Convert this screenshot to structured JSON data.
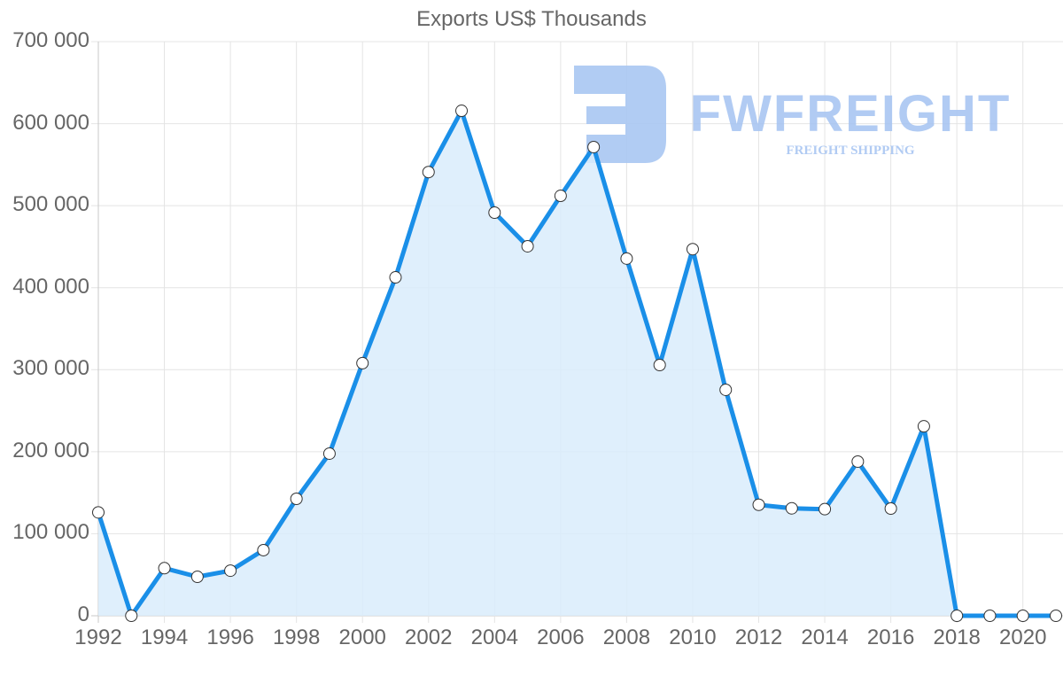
{
  "chart_data": {
    "type": "line",
    "title": "Exports US$ Thousands",
    "xlabel": "",
    "ylabel": "",
    "x": [
      1992,
      1993,
      1994,
      1995,
      1996,
      1997,
      1998,
      1999,
      2000,
      2001,
      2002,
      2003,
      2004,
      2005,
      2006,
      2007,
      2008,
      2009,
      2010,
      2011,
      2012,
      2013,
      2014,
      2015,
      2016,
      2017,
      2018,
      2019,
      2020,
      2021
    ],
    "series": [
      {
        "name": "Exports US$ Thousands",
        "values": [
          126000,
          0,
          58000,
          47500,
          55000,
          80000,
          142600,
          197700,
          308000,
          412600,
          541000,
          615700,
          491500,
          450500,
          512000,
          571500,
          435500,
          305700,
          447000,
          275500,
          135300,
          131000,
          130000,
          188000,
          130700,
          231000,
          0,
          0,
          0,
          0
        ],
        "color": "#1a8fe8",
        "fill": "#d9ecfc",
        "area": true
      }
    ],
    "ylim": [
      0,
      700000
    ],
    "yticks": [
      "0",
      "100 000",
      "200 000",
      "300 000",
      "400 000",
      "500 000",
      "600 000",
      "700 000"
    ],
    "xticks": [
      "1992",
      "1994",
      "1996",
      "1998",
      "2000",
      "2002",
      "2004",
      "2006",
      "2008",
      "2010",
      "2012",
      "2014",
      "2016",
      "2018",
      "2020"
    ],
    "grid": true,
    "legend": "none"
  },
  "watermark": {
    "brand": "FWFREIGHT",
    "tagline": "FREIGHT SHIPPING",
    "color": "#a9c6f2"
  }
}
